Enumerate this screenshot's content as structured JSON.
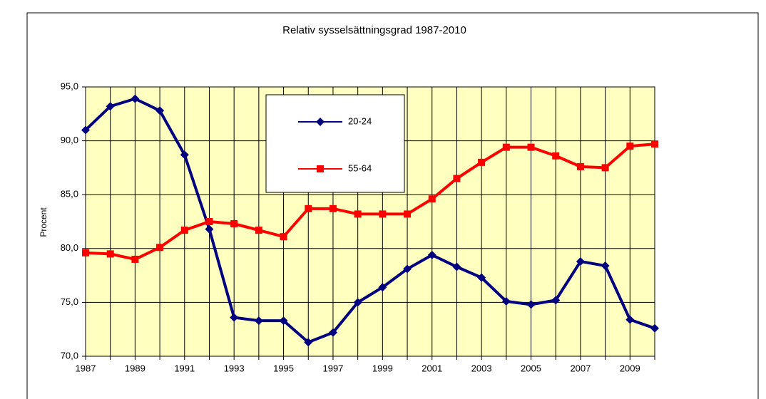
{
  "chart_data": {
    "type": "line",
    "title": "Relativ sysselsättningsgrad  1987-2010",
    "y_label": "Procent",
    "categories": [
      "1987",
      null,
      "1989",
      null,
      "1991",
      null,
      "1993",
      null,
      "1995",
      null,
      "1997",
      null,
      "1999",
      null,
      "2001",
      null,
      "2003",
      null,
      "2005",
      null,
      "2007",
      null,
      "2009",
      null
    ],
    "series": [
      {
        "name": "20-24",
        "color": "#000080",
        "marker": "diamond",
        "values": [
          91.0,
          93.2,
          93.9,
          92.8,
          88.7,
          81.8,
          73.6,
          73.3,
          73.3,
          71.3,
          72.2,
          75.0,
          76.4,
          78.1,
          79.4,
          78.3,
          77.3,
          75.1,
          74.8,
          75.2,
          78.8,
          78.4,
          73.4,
          72.6
        ]
      },
      {
        "name": "55-64",
        "color": "#ff0000",
        "marker": "square",
        "values": [
          79.6,
          79.5,
          79.0,
          80.1,
          81.7,
          82.5,
          82.3,
          81.7,
          81.1,
          83.7,
          83.7,
          83.2,
          83.2,
          83.2,
          84.6,
          86.5,
          88.0,
          89.4,
          89.4,
          88.6,
          87.6,
          87.5,
          89.5,
          89.7
        ]
      }
    ],
    "ylim": [
      70,
      95
    ],
    "yticks": [
      {
        "value": 70,
        "label": "70,0"
      },
      {
        "value": 75,
        "label": "75,0"
      },
      {
        "value": 80,
        "label": "80,0"
      },
      {
        "value": 85,
        "label": "85,0"
      },
      {
        "value": 90,
        "label": "90,0"
      },
      {
        "value": 95,
        "label": "95,0"
      }
    ],
    "grid": true,
    "plot_background": "#ffffc0"
  }
}
